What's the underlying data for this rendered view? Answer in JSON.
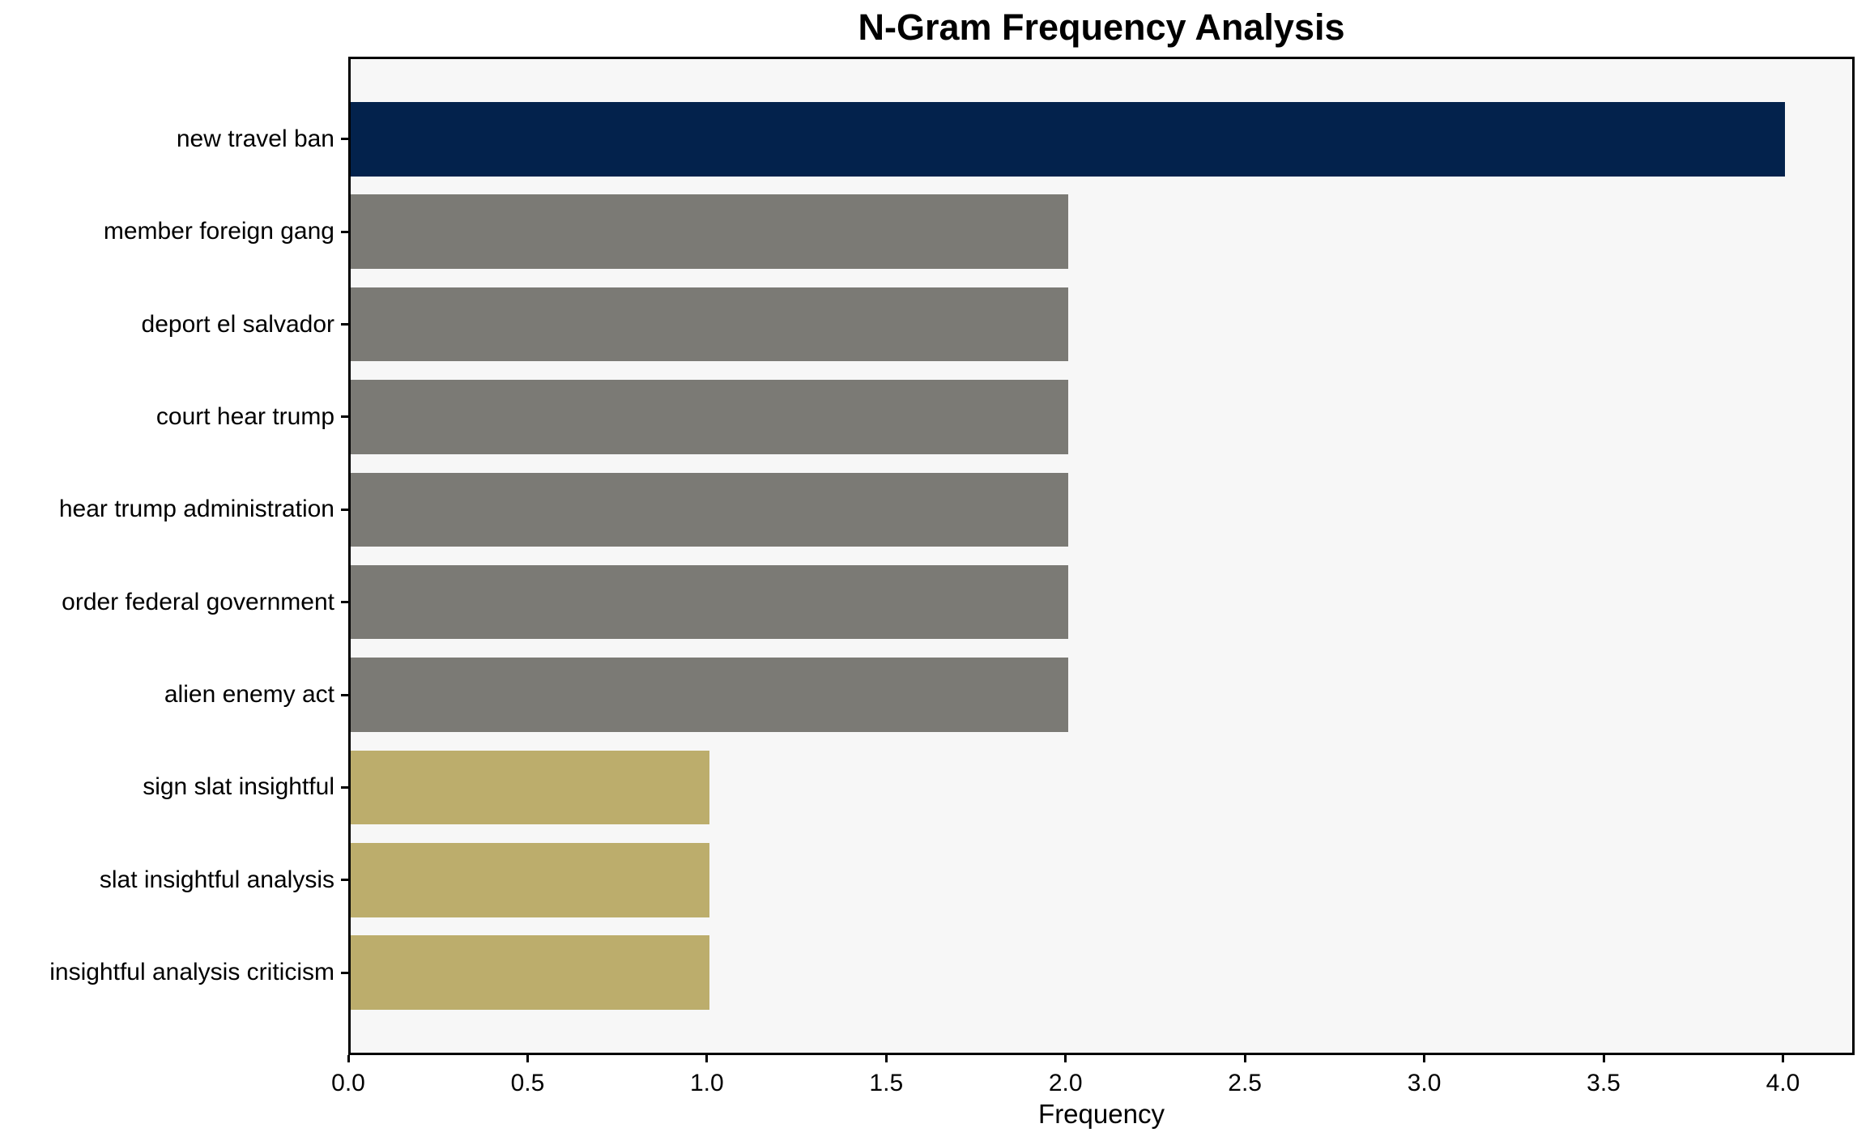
{
  "chart_data": {
    "type": "bar",
    "orientation": "horizontal",
    "title": "N-Gram Frequency Analysis",
    "xlabel": "Frequency",
    "ylabel": "",
    "categories": [
      "new travel ban",
      "member foreign gang",
      "deport el salvador",
      "court hear trump",
      "hear trump administration",
      "order federal government",
      "alien enemy act",
      "sign slat insightful",
      "slat insightful analysis",
      "insightful analysis criticism"
    ],
    "values": [
      4,
      2,
      2,
      2,
      2,
      2,
      2,
      1,
      1,
      1
    ],
    "bar_colors": [
      "#03224c",
      "#7b7a75",
      "#7b7a75",
      "#7b7a75",
      "#7b7a75",
      "#7b7a75",
      "#7b7a75",
      "#bcad6c",
      "#bcad6c",
      "#bcad6c"
    ],
    "xlim": [
      0,
      4.2
    ],
    "xticks": [
      0.0,
      0.5,
      1.0,
      1.5,
      2.0,
      2.5,
      3.0,
      3.5,
      4.0
    ],
    "xtick_labels": [
      "0.0",
      "0.5",
      "1.0",
      "1.5",
      "2.0",
      "2.5",
      "3.0",
      "3.5",
      "4.0"
    ],
    "grid": false,
    "legend": false,
    "colors": {
      "highlight_navy": "#03224c",
      "mid_gray": "#7b7a75",
      "khaki": "#bcad6c",
      "plot_background": "#f7f7f7",
      "figure_background": "#ffffff",
      "axis": "#000000",
      "text": "#000000"
    }
  }
}
